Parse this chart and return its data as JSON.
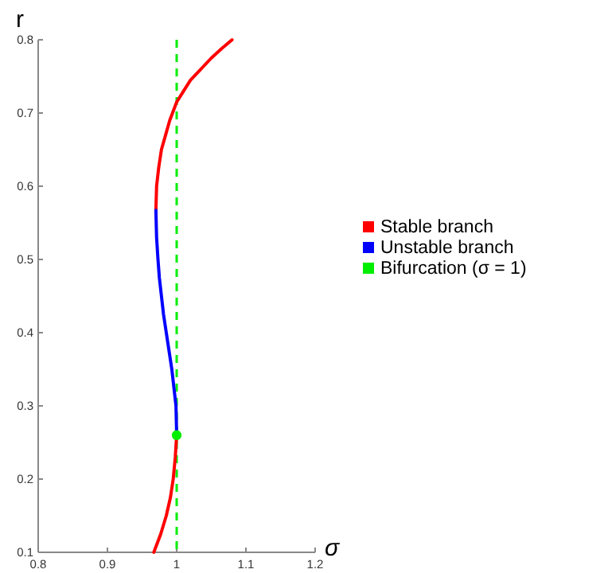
{
  "chart_data": {
    "type": "line",
    "xlabel": "σ",
    "ylabel": "r",
    "xlim": [
      0.8,
      1.2
    ],
    "ylim": [
      0.1,
      0.8
    ],
    "xticks": [
      0.8,
      0.9,
      1,
      1.1,
      1.2
    ],
    "yticks": [
      0.1,
      0.2,
      0.3,
      0.4,
      0.5,
      0.6,
      0.7,
      0.8
    ],
    "grid": false,
    "legend": "right",
    "marker": "none",
    "line_style": "solid",
    "series": [
      {
        "name": "Stable branch",
        "color": "#ff0000",
        "x": [
          0.967,
          0.977,
          0.985,
          0.991,
          0.995,
          0.998,
          1.0,
          null,
          0.97,
          0.971,
          0.974,
          0.978,
          0.984,
          0.99,
          1.0,
          1.01,
          1.02,
          1.035,
          1.05,
          1.065,
          1.08
        ],
        "values": [
          0.1,
          0.125,
          0.15,
          0.175,
          0.2,
          0.23,
          0.26,
          null,
          0.567,
          0.6,
          0.625,
          0.65,
          0.67,
          0.69,
          0.715,
          0.73,
          0.745,
          0.76,
          0.775,
          0.788,
          0.8
        ]
      },
      {
        "name": "Unstable branch",
        "color": "#0000ff",
        "x": [
          1.0,
          0.999,
          0.996,
          0.993,
          0.989,
          0.985,
          0.981,
          0.978,
          0.975,
          0.973,
          0.971,
          0.97
        ],
        "values": [
          0.26,
          0.3,
          0.325,
          0.35,
          0.375,
          0.4,
          0.425,
          0.45,
          0.475,
          0.5,
          0.53,
          0.567
        ]
      },
      {
        "name": "Bifurcation (σ = 1)",
        "type": "scatter",
        "marker": "circle",
        "color": "#00ee00",
        "x": [
          1.0
        ],
        "values": [
          0.26
        ]
      }
    ],
    "ref_lines": [
      {
        "axis": "x",
        "value": 1,
        "color": "#00ee00",
        "line_style": "dashed"
      }
    ]
  }
}
